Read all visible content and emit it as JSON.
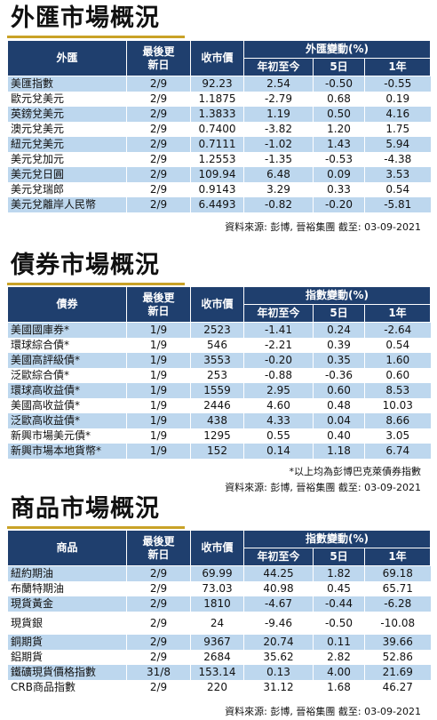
{
  "fx": {
    "title": "外匯市場概況",
    "headers": {
      "name": "外匯",
      "date": "最後更新日",
      "close": "收市價",
      "change": "外匯變動(%)",
      "ytd": "年初至今",
      "d5": "5日",
      "y1": "1年"
    },
    "rows": [
      {
        "name": "美匯指數",
        "date": "2/9",
        "close": "92.23",
        "ytd": "2.54",
        "d5": "-0.50",
        "y1": "-0.55"
      },
      {
        "name": "歐元兌美元",
        "date": "2/9",
        "close": "1.1875",
        "ytd": "-2.79",
        "d5": "0.68",
        "y1": "0.19"
      },
      {
        "name": "英鎊兌美元",
        "date": "2/9",
        "close": "1.3833",
        "ytd": "1.19",
        "d5": "0.50",
        "y1": "4.16"
      },
      {
        "name": "澳元兌美元",
        "date": "2/9",
        "close": "0.7400",
        "ytd": "-3.82",
        "d5": "1.20",
        "y1": "1.75"
      },
      {
        "name": "紐元兌美元",
        "date": "2/9",
        "close": "0.7111",
        "ytd": "-1.02",
        "d5": "1.43",
        "y1": "5.94"
      },
      {
        "name": "美元兌加元",
        "date": "2/9",
        "close": "1.2553",
        "ytd": "-1.35",
        "d5": "-0.53",
        "y1": "-4.38"
      },
      {
        "name": "美元兌日圓",
        "date": "2/9",
        "close": "109.94",
        "ytd": "6.48",
        "d5": "0.09",
        "y1": "3.53"
      },
      {
        "name": "美元兌瑞郎",
        "date": "2/9",
        "close": "0.9143",
        "ytd": "3.29",
        "d5": "0.33",
        "y1": "0.54"
      },
      {
        "name": "美元兌離岸人民幣",
        "date": "2/9",
        "close": "6.4493",
        "ytd": "-0.82",
        "d5": "-0.20",
        "y1": "-5.81"
      }
    ],
    "source": "資料來源: 彭博, 晉裕集團 截至: 03-09-2021"
  },
  "bond": {
    "title": "債券市場概況",
    "headers": {
      "name": "債券",
      "date": "最後更新日",
      "close": "收市價",
      "change": "指數變動(%)",
      "ytd": "年初至今",
      "d5": "5日",
      "y1": "1年"
    },
    "rows": [
      {
        "name": "美國國庫券*",
        "date": "1/9",
        "close": "2523",
        "ytd": "-1.41",
        "d5": "0.24",
        "y1": "-2.64"
      },
      {
        "name": "環球綜合債*",
        "date": "1/9",
        "close": "546",
        "ytd": "-2.21",
        "d5": "0.39",
        "y1": "0.54"
      },
      {
        "name": "美國高評級債*",
        "date": "1/9",
        "close": "3553",
        "ytd": "-0.20",
        "d5": "0.35",
        "y1": "1.60"
      },
      {
        "name": "泛歐綜合債*",
        "date": "1/9",
        "close": "253",
        "ytd": "-0.88",
        "d5": "-0.36",
        "y1": "0.60"
      },
      {
        "name": "環球高收益債*",
        "date": "1/9",
        "close": "1559",
        "ytd": "2.95",
        "d5": "0.60",
        "y1": "8.53"
      },
      {
        "name": "美國高收益債*",
        "date": "1/9",
        "close": "2446",
        "ytd": "4.60",
        "d5": "0.48",
        "y1": "10.03"
      },
      {
        "name": "泛歐高收益債*",
        "date": "1/9",
        "close": "438",
        "ytd": "4.33",
        "d5": "0.04",
        "y1": "8.66"
      },
      {
        "name": "新興市場美元債*",
        "date": "1/9",
        "close": "1295",
        "ytd": "0.55",
        "d5": "0.40",
        "y1": "3.05"
      },
      {
        "name": "新興市場本地貨幣*",
        "date": "1/9",
        "close": "152",
        "ytd": "0.14",
        "d5": "1.18",
        "y1": "6.74"
      }
    ],
    "note": "*以上均為彭博巴克萊債券指數",
    "source": "資料來源: 彭博, 晉裕集團 截至: 03-09-2021"
  },
  "commodity": {
    "title": "商品市場概況",
    "headers": {
      "name": "商品",
      "date": "最後更新日",
      "close": "收市價",
      "change": "指數變動(%)",
      "ytd": "年初至今",
      "d5": "5日",
      "y1": "1年"
    },
    "rows": [
      {
        "name": "紐約期油",
        "date": "2/9",
        "close": "69.99",
        "ytd": "44.25",
        "d5": "1.82",
        "y1": "69.18"
      },
      {
        "name": "布蘭特期油",
        "date": "2/9",
        "close": "73.03",
        "ytd": "40.98",
        "d5": "0.45",
        "y1": "65.71"
      },
      {
        "name": "現貨黃金",
        "date": "2/9",
        "close": "1810",
        "ytd": "-4.67",
        "d5": "-0.44",
        "y1": "-6.28"
      },
      {
        "name": "現貨銀",
        "date": "2/9",
        "close": "24",
        "ytd": "-9.46",
        "d5": "-0.50",
        "y1": "-10.08"
      },
      {
        "name": "銅期貨",
        "date": "2/9",
        "close": "9367",
        "ytd": "20.74",
        "d5": "0.11",
        "y1": "39.66"
      },
      {
        "name": "鋁期貨",
        "date": "2/9",
        "close": "2684",
        "ytd": "35.62",
        "d5": "2.82",
        "y1": "52.86"
      },
      {
        "name": "鐵礦現貨價格指數",
        "date": "31/8",
        "close": "153.14",
        "ytd": "0.13",
        "d5": "4.00",
        "y1": "21.69"
      },
      {
        "name": "CRB商品指數",
        "date": "2/9",
        "close": "220",
        "ytd": "31.12",
        "d5": "1.68",
        "y1": "46.27"
      }
    ],
    "source": "資料來源: 彭博, 晉裕集團 截至: 03-09-2021"
  }
}
